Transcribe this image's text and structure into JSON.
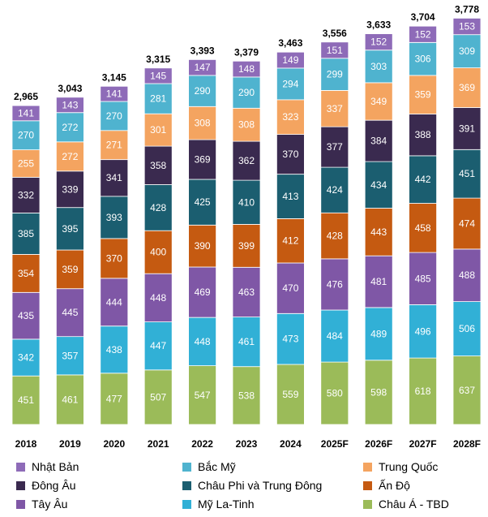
{
  "chart_data": {
    "type": "stacked-bar",
    "categories": [
      "2018",
      "2019",
      "2020",
      "2021",
      "2022",
      "2023",
      "2024",
      "2025F",
      "2026F",
      "2027F",
      "2028F"
    ],
    "totals": [
      "2,965",
      "3,043",
      "3,145",
      "3,315",
      "3,393",
      "3,379",
      "3,463",
      "3,556",
      "3,633",
      "3,704",
      "3,778"
    ],
    "series": [
      {
        "name": "Châu Á - TBD",
        "color": "#9BBB59",
        "values": [
          451,
          461,
          477,
          507,
          547,
          538,
          559,
          580,
          598,
          618,
          637
        ]
      },
      {
        "name": "Mỹ La-Tinh",
        "color": "#31B0D6",
        "values": [
          342,
          357,
          438,
          447,
          448,
          461,
          473,
          484,
          489,
          496,
          506
        ]
      },
      {
        "name": "Tây Âu",
        "color": "#7F57A6",
        "values": [
          435,
          445,
          444,
          448,
          469,
          463,
          470,
          476,
          481,
          485,
          488
        ]
      },
      {
        "name": "Ấn Độ",
        "color": "#C55A11",
        "values": [
          354,
          359,
          370,
          400,
          390,
          399,
          412,
          428,
          443,
          458,
          474
        ]
      },
      {
        "name": "Châu Phi và Trung Đông",
        "color": "#1B5E70",
        "values": [
          385,
          395,
          393,
          428,
          425,
          410,
          413,
          424,
          434,
          442,
          451
        ]
      },
      {
        "name": "Đông Âu",
        "color": "#3A2A4F",
        "values": [
          332,
          339,
          341,
          358,
          369,
          362,
          370,
          377,
          384,
          388,
          391
        ]
      },
      {
        "name": "Trung Quốc",
        "color": "#F4A460",
        "values": [
          255,
          272,
          271,
          301,
          308,
          308,
          323,
          337,
          349,
          359,
          369
        ]
      },
      {
        "name": "Bắc Mỹ",
        "color": "#4FB3CF",
        "values": [
          270,
          272,
          270,
          281,
          290,
          290,
          294,
          299,
          303,
          306,
          309
        ]
      },
      {
        "name": "Nhật Bản",
        "color": "#8E6BB8",
        "values": [
          141,
          143,
          141,
          145,
          147,
          148,
          149,
          151,
          152,
          152,
          153
        ]
      }
    ],
    "legend_order": [
      "Nhật Bản",
      "Bắc Mỹ",
      "Trung Quốc",
      "Đông Âu",
      "Châu Phi và Trung Đông",
      "Ấn Độ",
      "Tây Âu",
      "Mỹ La-Tinh",
      "Châu Á - TBD"
    ],
    "legend_position": "bottom"
  }
}
